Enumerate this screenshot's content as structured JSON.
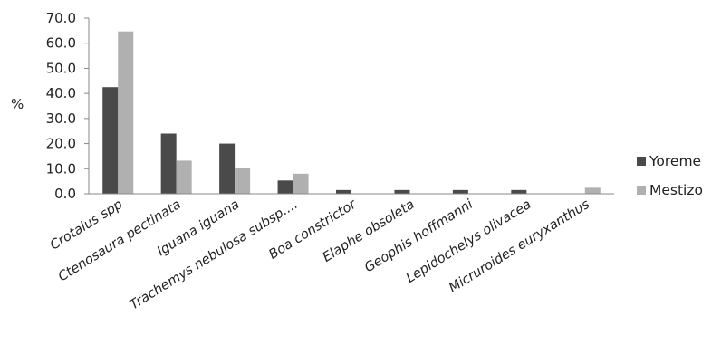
{
  "chart_data": {
    "type": "bar",
    "title": "",
    "xlabel": "",
    "ylabel": "%",
    "ylim": [
      0,
      70
    ],
    "yticks": [
      "0.0",
      "10.0",
      "20.0",
      "30.0",
      "40.0",
      "50.0",
      "60.0",
      "70.0"
    ],
    "grid": false,
    "legend_position": "right",
    "categories": [
      "Crotalus spp",
      "Ctenosaura pectinata",
      "Iguana iguana",
      "Trachemys nebulosa subsp....",
      "Boa constrictor",
      "Elaphe obsoleta",
      "Geophis hoffmanni",
      "Lepidochelys olivacea",
      "Micruroides euryxanthus"
    ],
    "series": [
      {
        "name": "Yoreme",
        "color": "#4a4a4a",
        "values": [
          42.5,
          24.0,
          20.0,
          5.3,
          1.5,
          1.5,
          1.5,
          1.5,
          0
        ]
      },
      {
        "name": "Mestizo",
        "color": "#b0b0b0",
        "values": [
          64.7,
          13.2,
          10.4,
          8.0,
          0,
          0,
          0,
          0,
          2.4
        ]
      }
    ]
  }
}
